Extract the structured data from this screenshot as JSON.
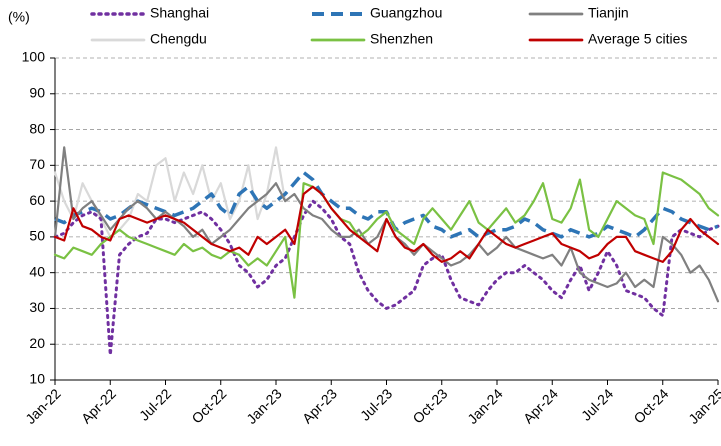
{
  "chart_data": {
    "type": "line",
    "y_label": "(%)",
    "x": [
      0,
      0.5,
      1,
      1.5,
      2,
      2.5,
      3,
      3.5,
      4,
      4.5,
      5,
      5.5,
      6,
      6.5,
      7,
      7.5,
      8,
      8.5,
      9,
      9.5,
      10,
      10.5,
      11,
      11.5,
      12,
      12.5,
      13,
      13.5,
      14,
      14.5,
      15,
      15.5,
      16,
      16.5,
      17,
      17.5,
      18,
      18.5,
      19,
      19.5,
      20,
      20.5,
      21,
      21.5,
      22,
      22.5,
      23,
      23.5,
      24,
      24.5,
      25,
      25.5,
      26,
      26.5,
      27,
      27.5,
      28,
      28.5,
      29,
      29.5,
      30,
      30.5,
      31,
      31.5,
      32,
      32.5,
      33,
      33.5,
      34,
      34.5,
      35,
      35.5,
      36
    ],
    "xlim": [
      0,
      36
    ],
    "xticks": [
      {
        "value": 0,
        "label": "Jan-22"
      },
      {
        "value": 3,
        "label": "Apr-22"
      },
      {
        "value": 6,
        "label": "Jul-22"
      },
      {
        "value": 9,
        "label": "Oct-22"
      },
      {
        "value": 12,
        "label": "Jan-23"
      },
      {
        "value": 15,
        "label": "Apr-23"
      },
      {
        "value": 18,
        "label": "Jul-23"
      },
      {
        "value": 21,
        "label": "Oct-23"
      },
      {
        "value": 24,
        "label": "Jan-24"
      },
      {
        "value": 27,
        "label": "Apr-24"
      },
      {
        "value": 30,
        "label": "Jul-24"
      },
      {
        "value": 33,
        "label": "Oct-24"
      },
      {
        "value": 36,
        "label": "Jan-25"
      }
    ],
    "ylim": [
      10,
      100
    ],
    "yticks": [
      10,
      20,
      30,
      40,
      50,
      60,
      70,
      80,
      90,
      100
    ],
    "grid": true,
    "legend": "top",
    "series": [
      {
        "name": "Shanghai",
        "color": "#7030a0",
        "style": "dotted",
        "values": [
          50,
          51,
          54,
          56,
          57,
          55,
          17,
          45,
          48,
          50,
          51,
          55,
          55,
          54,
          55,
          56,
          57,
          55,
          52,
          48,
          42,
          40,
          36,
          38,
          42,
          44,
          50,
          56,
          60,
          58,
          55,
          50,
          48,
          40,
          35,
          32,
          30,
          31,
          33,
          35,
          42,
          44,
          45,
          38,
          33,
          32,
          31,
          35,
          38,
          40,
          40,
          42,
          40,
          38,
          35,
          33,
          38,
          42,
          35,
          40,
          46,
          42,
          35,
          34,
          33,
          30,
          28,
          50,
          52,
          51,
          50,
          52,
          53
        ]
      },
      {
        "name": "Guangzhou",
        "color": "#2e75b6",
        "style": "dashed",
        "values": [
          55,
          54,
          56,
          57,
          58,
          57,
          55,
          56,
          58,
          60,
          59,
          58,
          57,
          56,
          57,
          58,
          60,
          62,
          58,
          56,
          62,
          64,
          60,
          58,
          60,
          62,
          65,
          68,
          66,
          62,
          60,
          58,
          58,
          56,
          55,
          57,
          57,
          52,
          54,
          55,
          56,
          53,
          52,
          50,
          51,
          52,
          50,
          51,
          52,
          52,
          53,
          55,
          54,
          52,
          51,
          50,
          52,
          51,
          50,
          51,
          53,
          52,
          51,
          50,
          52,
          55,
          58,
          57,
          55,
          54,
          53,
          52,
          53
        ]
      },
      {
        "name": "Tianjin",
        "color": "#808080",
        "style": "solid",
        "values": [
          50,
          75,
          55,
          58,
          60,
          56,
          52,
          55,
          58,
          60,
          58,
          55,
          57,
          55,
          53,
          50,
          52,
          48,
          50,
          52,
          55,
          58,
          60,
          62,
          65,
          60,
          62,
          58,
          56,
          55,
          52,
          50,
          50,
          52,
          48,
          50,
          55,
          50,
          48,
          45,
          48,
          46,
          44,
          42,
          43,
          45,
          48,
          45,
          47,
          50,
          47,
          46,
          45,
          44,
          45,
          42,
          47,
          40,
          38,
          37,
          36,
          37,
          40,
          36,
          38,
          36,
          50,
          48,
          45,
          40,
          42,
          38,
          32
        ]
      },
      {
        "name": "Chengdu",
        "color": "#d9d9d9",
        "style": "solid",
        "values": [
          68,
          60,
          55,
          65,
          60,
          55,
          50,
          52,
          55,
          62,
          60,
          70,
          72,
          60,
          68,
          62,
          70,
          60,
          65,
          55,
          60,
          70,
          55,
          62,
          75,
          60,
          null,
          null,
          null,
          null,
          null,
          null,
          null,
          null,
          null,
          null,
          null,
          null,
          null,
          null,
          null,
          null,
          null,
          null,
          null,
          null,
          null,
          null,
          null,
          null,
          null,
          null,
          null,
          null,
          null,
          null,
          null,
          null,
          null,
          null,
          null,
          null,
          null,
          null,
          null,
          null,
          null,
          null,
          null,
          null,
          null,
          null,
          null
        ]
      },
      {
        "name": "Shenzhen",
        "color": "#7ac143",
        "style": "solid",
        "values": [
          45,
          44,
          47,
          46,
          45,
          48,
          50,
          52,
          50,
          49,
          48,
          47,
          46,
          45,
          48,
          46,
          47,
          45,
          44,
          46,
          45,
          42,
          44,
          42,
          46,
          50,
          33,
          65,
          64,
          62,
          58,
          55,
          54,
          50,
          52,
          55,
          57,
          52,
          50,
          48,
          55,
          58,
          55,
          52,
          56,
          60,
          54,
          52,
          55,
          58,
          54,
          56,
          60,
          65,
          55,
          54,
          58,
          66,
          52,
          50,
          55,
          60,
          58,
          56,
          55,
          48,
          68,
          67,
          66,
          64,
          62,
          58,
          56
        ]
      },
      {
        "name": "Average 5 cities",
        "color": "#c00000",
        "style": "solid",
        "values": [
          50,
          49,
          58,
          53,
          52,
          50,
          49,
          55,
          56,
          55,
          54,
          55,
          56,
          55,
          54,
          52,
          50,
          48,
          47,
          46,
          47,
          45,
          50,
          48,
          50,
          52,
          48,
          62,
          64,
          62,
          58,
          55,
          52,
          50,
          48,
          46,
          55,
          50,
          47,
          46,
          48,
          45,
          43,
          44,
          46,
          44,
          48,
          52,
          50,
          48,
          47,
          48,
          49,
          50,
          51,
          48,
          47,
          46,
          44,
          45,
          48,
          50,
          50,
          46,
          45,
          44,
          43,
          46,
          52,
          55,
          52,
          50,
          48
        ]
      }
    ]
  }
}
